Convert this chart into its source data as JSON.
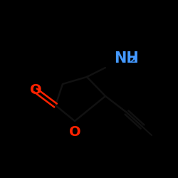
{
  "background_color": "#000000",
  "line_color": "#111111",
  "oxygen_color": "#ff2200",
  "nitrogen_color": "#4499ff",
  "nh2_text": "NH",
  "nh2_sub": "2",
  "o_carbonyl": "O",
  "o_ring": "O",
  "bond_lw": 1.8,
  "font_size_atom": 14,
  "font_size_sub": 9
}
